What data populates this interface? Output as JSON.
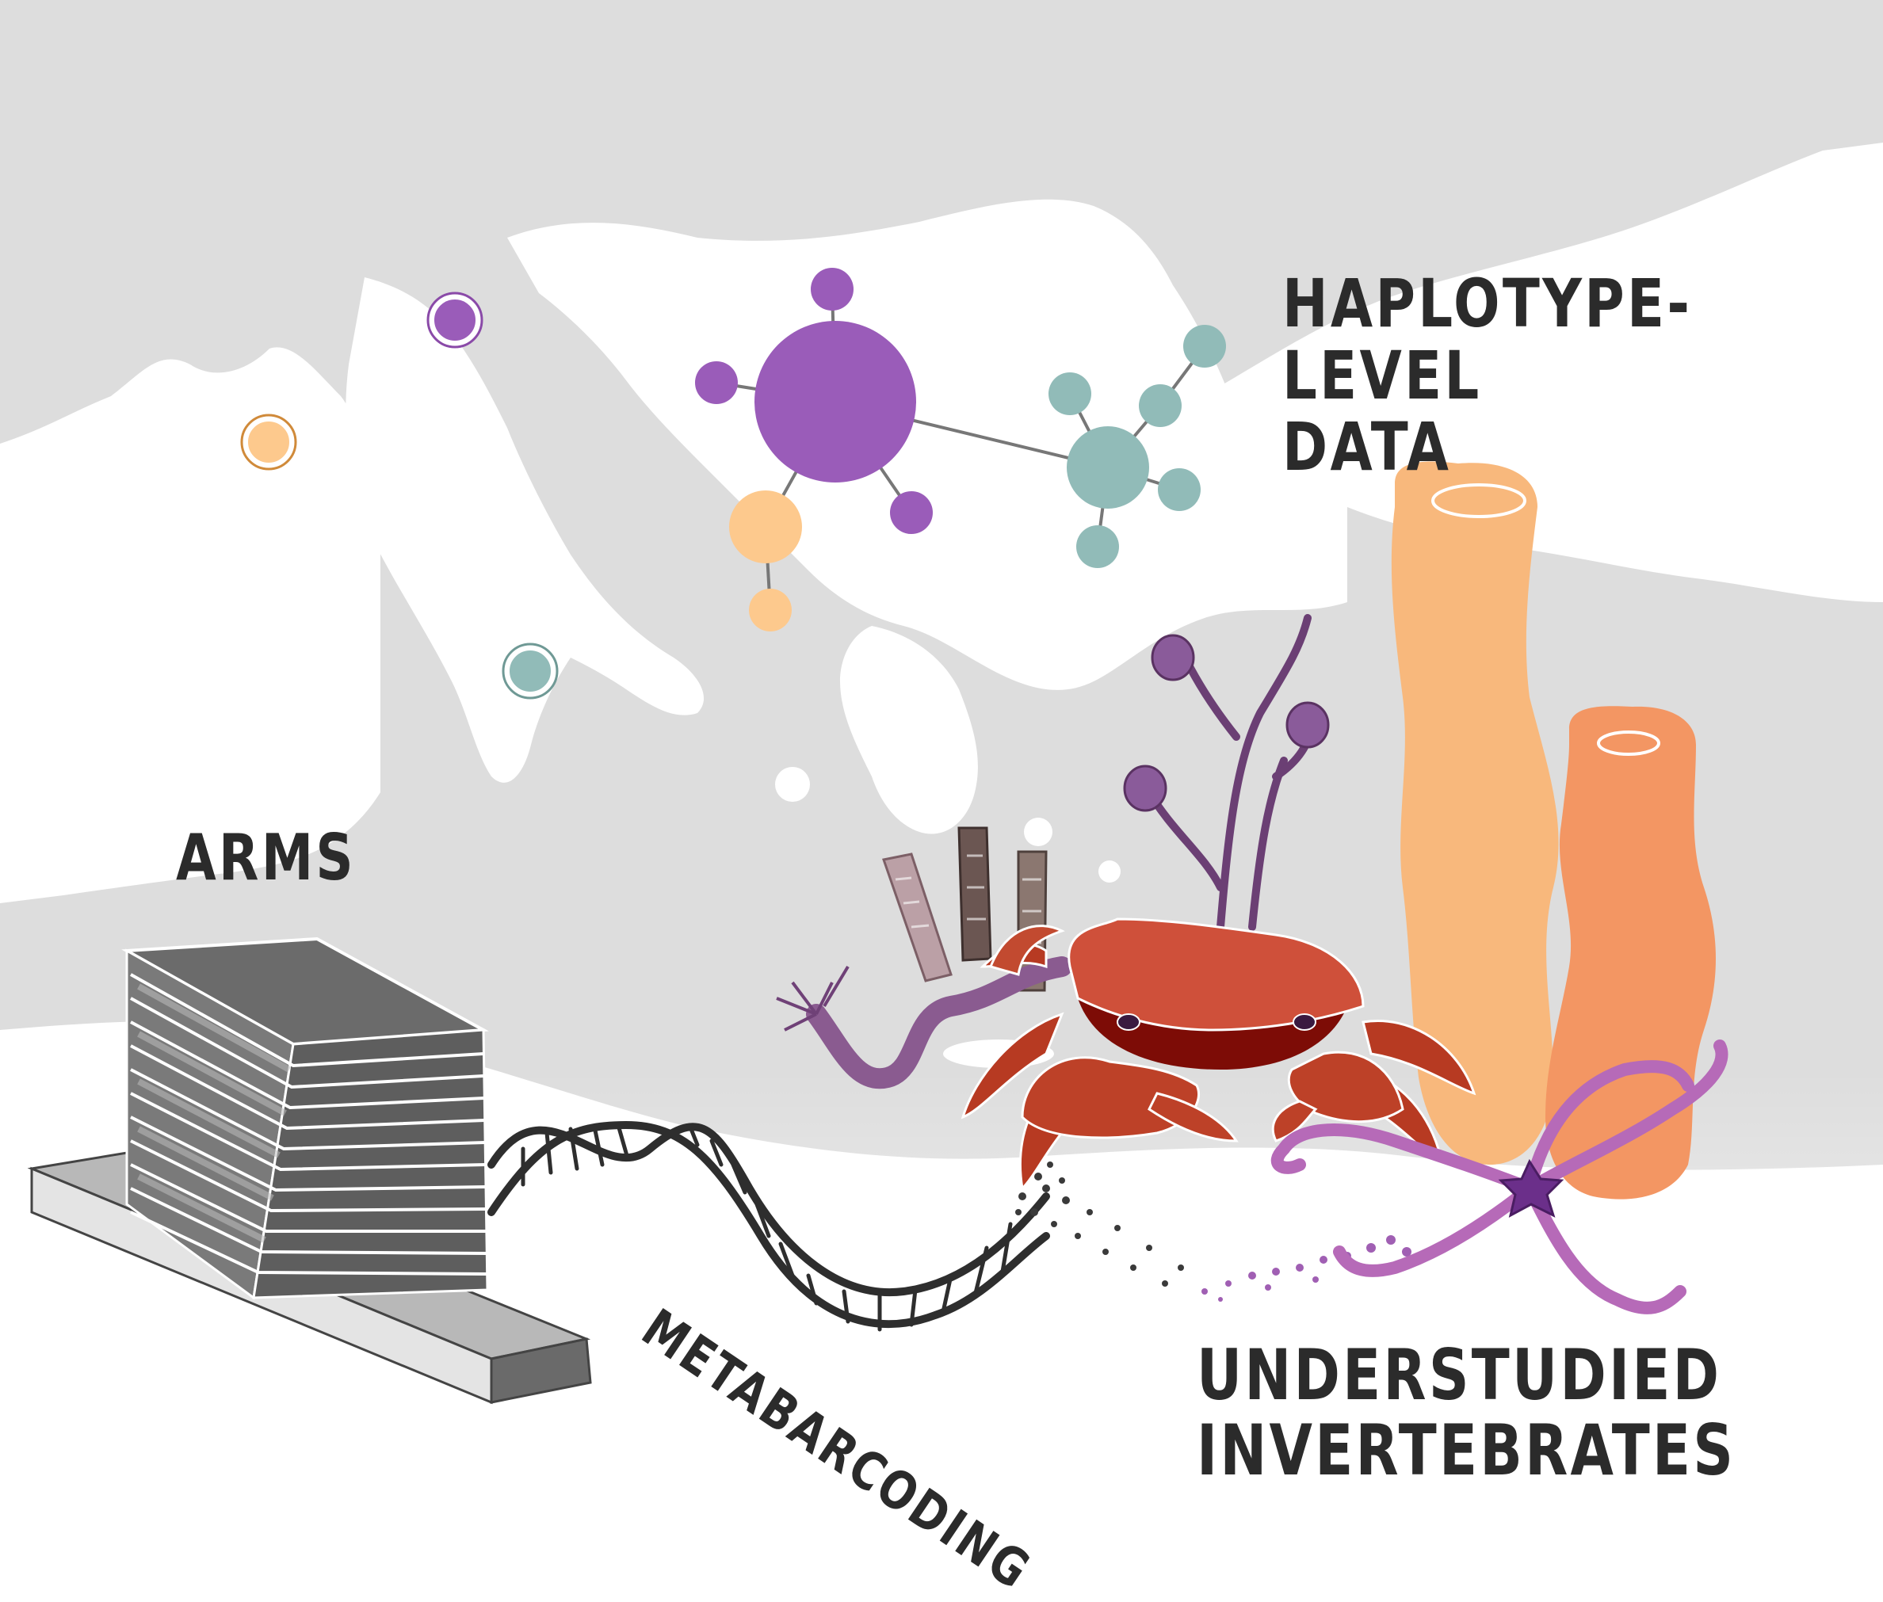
{
  "labels": {
    "haplotype": "HAPLOTYPE-LEVEL\nDATA",
    "arms": "ARMS",
    "metabarcoding": "METABARCODING",
    "invertebrates": "UNDERSTUDIED\nINVERTEBRATES"
  },
  "colors": {
    "sea": "#dddddd",
    "land": "#ffffff",
    "purple": "#9a5cb9",
    "orange": "#fdc98d",
    "teal": "#91bbb8",
    "arms_dark": "#5f5f5f",
    "arms_light": "#b4b4b4",
    "crab": "#c4462f",
    "sponge_light": "#f8b87c",
    "sponge_dark": "#f39663",
    "star": "#b66ab8",
    "text": "#2b2b2b"
  },
  "icons": [
    "map-background",
    "haplotype-network",
    "arms-stack",
    "dna-helix",
    "crab",
    "sponges",
    "hydroid",
    "tube-worms",
    "brittle-star"
  ]
}
